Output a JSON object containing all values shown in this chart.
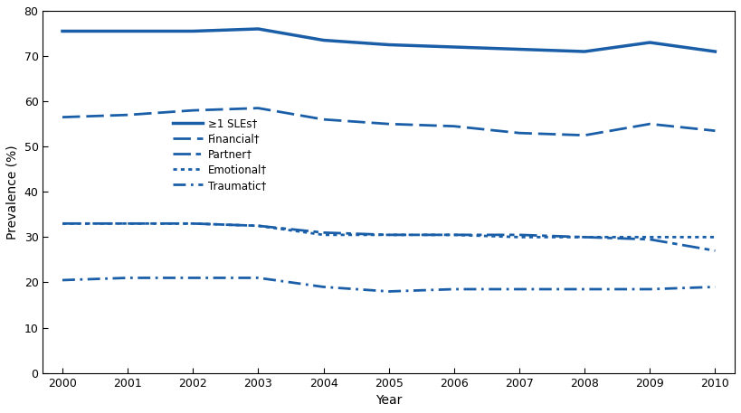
{
  "years": [
    2000,
    2001,
    2002,
    2003,
    2004,
    2005,
    2006,
    2007,
    2008,
    2009,
    2010
  ],
  "ge1_SLEs": [
    75.5,
    75.5,
    75.5,
    76.0,
    73.5,
    72.5,
    72.0,
    71.5,
    71.0,
    73.0,
    71.0
  ],
  "financial": [
    56.5,
    57.0,
    58.0,
    58.5,
    56.0,
    55.0,
    54.5,
    53.0,
    52.5,
    55.0,
    53.5
  ],
  "partner": [
    33.0,
    33.0,
    33.0,
    32.5,
    31.0,
    30.5,
    30.5,
    30.5,
    30.0,
    29.5,
    27.0
  ],
  "emotional": [
    33.0,
    33.0,
    33.0,
    32.5,
    30.5,
    30.5,
    30.5,
    30.0,
    30.0,
    30.0,
    30.0
  ],
  "traumatic": [
    20.5,
    21.0,
    21.0,
    21.0,
    19.0,
    18.0,
    18.5,
    18.5,
    18.5,
    18.5,
    19.0
  ],
  "line_color": "#1A5EA8",
  "ylabel": "Prevalence (%)",
  "xlabel": "Year",
  "ylim": [
    0,
    80
  ],
  "yticks": [
    0,
    10,
    20,
    30,
    40,
    50,
    60,
    70,
    80
  ],
  "legend_labels": [
    "≥1 SLEs†",
    "Financial†",
    "Partner†",
    "Emotional†",
    "Traumatic†"
  ],
  "background_color": "#ffffff"
}
